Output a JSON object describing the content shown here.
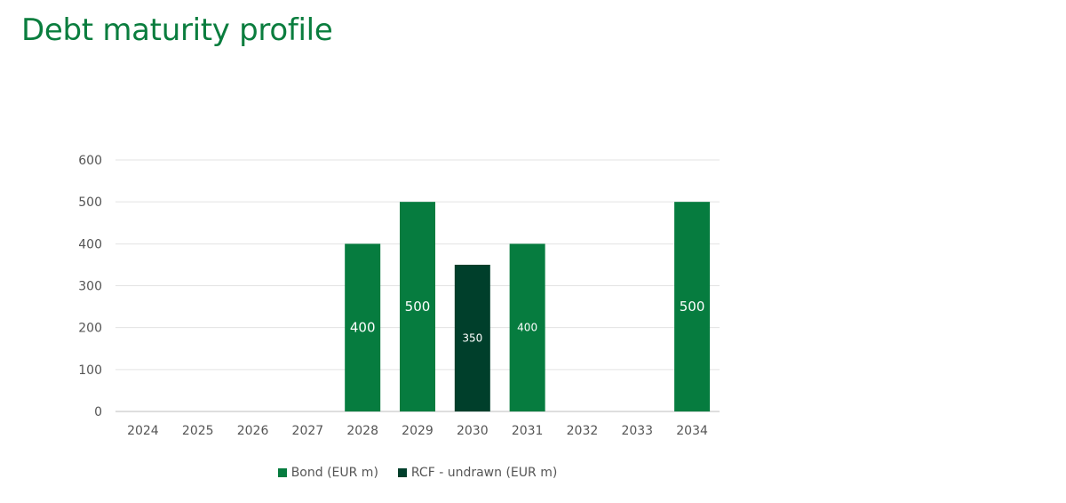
{
  "page": {
    "title": "Debt maturity profile"
  },
  "colors": {
    "bond": "#067c3f",
    "rcf": "#003f2b",
    "title": "#0a7d3e",
    "grid": "#e3e3e3"
  },
  "chart_data": {
    "type": "bar",
    "title": "Debt maturity profile",
    "xlabel": "",
    "ylabel": "",
    "ylim": [
      0,
      600
    ],
    "yticks": [
      0,
      100,
      200,
      300,
      400,
      500,
      600
    ],
    "grid": true,
    "legend_position": "bottom",
    "categories": [
      "2024",
      "2025",
      "2026",
      "2027",
      "2028",
      "2029",
      "2030",
      "2031",
      "2032",
      "2033",
      "2034"
    ],
    "series": [
      {
        "name": "Bond (EUR m)",
        "values": [
          0,
          0,
          0,
          0,
          400,
          500,
          0,
          400,
          0,
          0,
          500
        ]
      },
      {
        "name": "RCF - undrawn (EUR m)",
        "values": [
          0,
          0,
          0,
          0,
          0,
          0,
          350,
          0,
          0,
          0,
          0
        ]
      }
    ]
  }
}
